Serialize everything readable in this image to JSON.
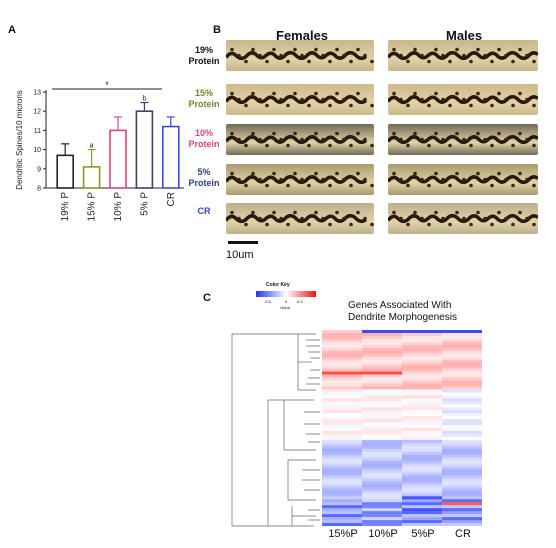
{
  "panel_a": {
    "letter": "A",
    "chart_data": {
      "type": "bar",
      "categories": [
        "19% P",
        "15% P",
        "10% P",
        "5% P",
        "CR"
      ],
      "values": [
        9.7,
        9.1,
        11.0,
        12.0,
        11.2
      ],
      "errors": [
        0.6,
        0.9,
        0.7,
        0.45,
        0.5
      ],
      "bar_colors": [
        "#222222",
        "#8a9a2a",
        "#e0447a",
        "#4a3a6e",
        "#3a4adf"
      ],
      "letter_marks": [
        "",
        "a",
        "",
        "b",
        ""
      ],
      "significance": "*",
      "ylabel": "Dendritic Spines/10 microns",
      "ylim": [
        8,
        13
      ],
      "yticks": [
        "8",
        "9",
        "10",
        "11",
        "12",
        "13"
      ]
    }
  },
  "panel_b": {
    "letter": "B",
    "col_females": "Females",
    "col_males": "Males",
    "rows": [
      {
        "l1": "19%",
        "l2": "Protein",
        "color": "#111111"
      },
      {
        "l1": "15%",
        "l2": "Protein",
        "color": "#6a8a2a"
      },
      {
        "l1": "10%",
        "l2": "Protein",
        "color": "#e0447a"
      },
      {
        "l1": "5%",
        "l2": "Protein",
        "color": "#2c3a8a"
      },
      {
        "l1": "CR",
        "l2": "",
        "color": "#3344cc"
      }
    ],
    "scale_label": "10um"
  },
  "panel_c": {
    "letter": "C",
    "color_key_title": "Color Key",
    "color_key_ticks": [
      "-0.5",
      "0",
      "0.5"
    ],
    "color_key_xlabel": "Value",
    "heatmap_title_line1": "Genes  Associated With",
    "heatmap_title_line2": "Dendrite  Morphogenesis",
    "columns": [
      "15%P",
      "10%P",
      "5%P",
      "CR"
    ]
  }
}
